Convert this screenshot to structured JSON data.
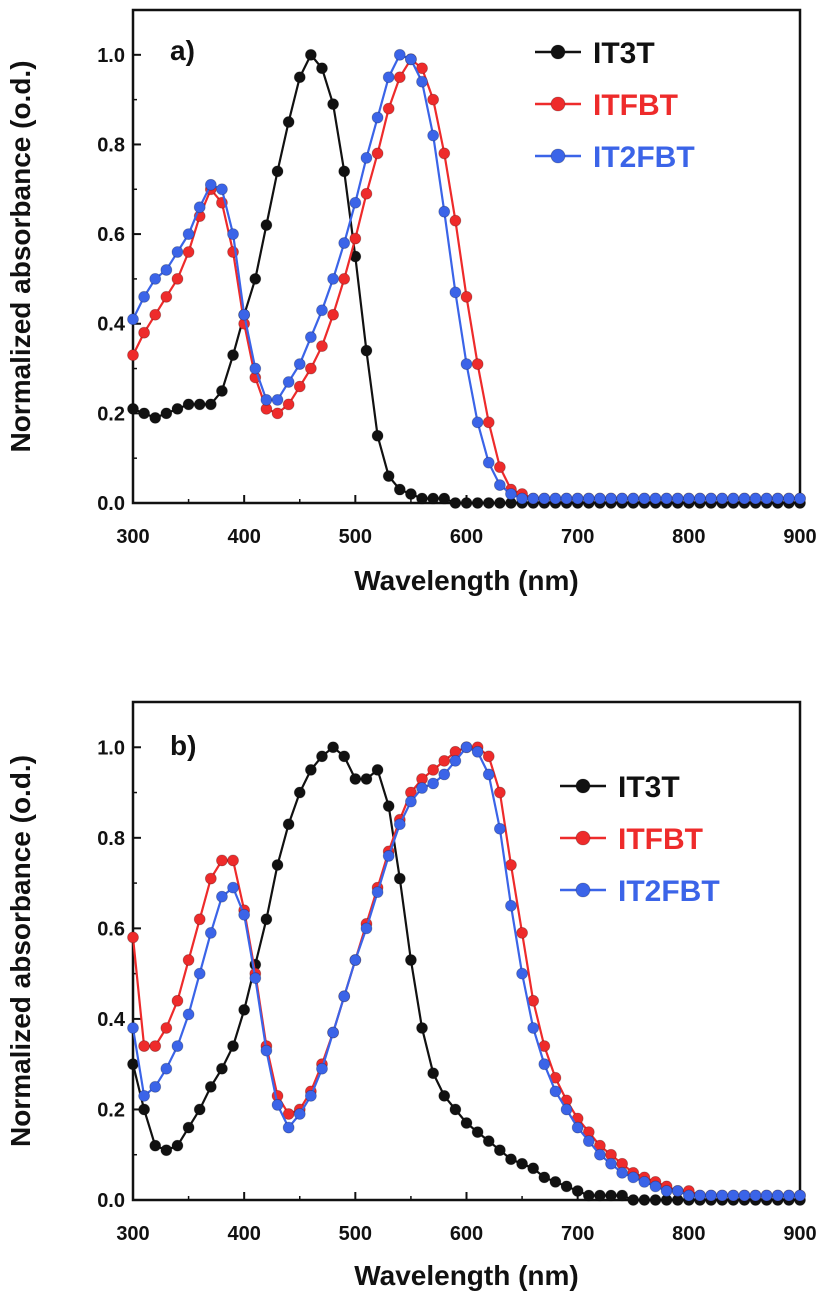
{
  "chart_data": [
    {
      "type": "line",
      "panel_label": "a)",
      "xlabel": "Wavelength (nm)",
      "ylabel": "Normalized absorbance (o.d.)",
      "xlim": [
        300,
        900
      ],
      "ylim": [
        0,
        1.1
      ],
      "xticks": [
        300,
        400,
        500,
        600,
        700,
        800,
        900
      ],
      "yticks": [
        0.0,
        0.2,
        0.4,
        0.6,
        0.8,
        1.0
      ],
      "ytick_labels": [
        "0.0",
        "0.2",
        "0.4",
        "0.6",
        "0.8",
        "1.0"
      ],
      "legend_position": "top-right",
      "series": [
        {
          "name": "IT3T",
          "color": "#111111",
          "x": [
            300,
            310,
            320,
            330,
            340,
            350,
            360,
            370,
            380,
            390,
            400,
            410,
            420,
            430,
            440,
            450,
            460,
            470,
            480,
            490,
            500,
            510,
            520,
            530,
            540,
            550,
            560,
            570,
            580,
            590,
            600,
            610,
            620,
            630,
            640,
            650,
            660,
            670,
            680,
            690,
            700,
            710,
            720,
            730,
            740,
            750,
            760,
            770,
            780,
            790,
            800,
            810,
            820,
            830,
            840,
            850,
            860,
            870,
            880,
            890,
            900
          ],
          "y": [
            0.21,
            0.2,
            0.19,
            0.2,
            0.21,
            0.22,
            0.22,
            0.22,
            0.25,
            0.33,
            0.42,
            0.5,
            0.62,
            0.74,
            0.85,
            0.95,
            1.0,
            0.97,
            0.89,
            0.74,
            0.55,
            0.34,
            0.15,
            0.06,
            0.03,
            0.02,
            0.01,
            0.01,
            0.01,
            0.0,
            0.0,
            0.0,
            0.0,
            0.0,
            0.0,
            0.0,
            0.0,
            0.0,
            0.0,
            0.0,
            0.0,
            0.0,
            0.0,
            0.0,
            0.0,
            0.0,
            0.0,
            0.0,
            0.0,
            0.0,
            0.0,
            0.0,
            0.0,
            0.0,
            0.0,
            0.0,
            0.0,
            0.0,
            0.0,
            0.0,
            0.0
          ]
        },
        {
          "name": "ITFBT",
          "color": "#ee2b2b",
          "x": [
            300,
            310,
            320,
            330,
            340,
            350,
            360,
            370,
            380,
            390,
            400,
            410,
            420,
            430,
            440,
            450,
            460,
            470,
            480,
            490,
            500,
            510,
            520,
            530,
            540,
            550,
            560,
            570,
            580,
            590,
            600,
            610,
            620,
            630,
            640,
            650,
            660,
            670,
            680,
            690,
            700,
            710,
            720,
            730,
            740,
            750,
            760,
            770,
            780,
            790,
            800,
            810,
            820,
            830,
            840,
            850,
            860,
            870,
            880,
            890,
            900
          ],
          "y": [
            0.33,
            0.38,
            0.42,
            0.46,
            0.5,
            0.56,
            0.64,
            0.7,
            0.67,
            0.56,
            0.4,
            0.28,
            0.21,
            0.2,
            0.22,
            0.26,
            0.3,
            0.35,
            0.42,
            0.5,
            0.59,
            0.69,
            0.78,
            0.88,
            0.95,
            0.99,
            0.97,
            0.9,
            0.78,
            0.63,
            0.46,
            0.31,
            0.18,
            0.08,
            0.03,
            0.02,
            0.01,
            0.01,
            0.01,
            0.01,
            0.01,
            0.01,
            0.01,
            0.01,
            0.01,
            0.01,
            0.01,
            0.01,
            0.01,
            0.01,
            0.01,
            0.01,
            0.01,
            0.01,
            0.01,
            0.01,
            0.01,
            0.01,
            0.01,
            0.01,
            0.01
          ]
        },
        {
          "name": "IT2FBT",
          "color": "#3b64e8",
          "x": [
            300,
            310,
            320,
            330,
            340,
            350,
            360,
            370,
            380,
            390,
            400,
            410,
            420,
            430,
            440,
            450,
            460,
            470,
            480,
            490,
            500,
            510,
            520,
            530,
            540,
            550,
            560,
            570,
            580,
            590,
            600,
            610,
            620,
            630,
            640,
            650,
            660,
            670,
            680,
            690,
            700,
            710,
            720,
            730,
            740,
            750,
            760,
            770,
            780,
            790,
            800,
            810,
            820,
            830,
            840,
            850,
            860,
            870,
            880,
            890,
            900
          ],
          "y": [
            0.41,
            0.46,
            0.5,
            0.52,
            0.56,
            0.6,
            0.66,
            0.71,
            0.7,
            0.6,
            0.42,
            0.3,
            0.23,
            0.23,
            0.27,
            0.31,
            0.37,
            0.43,
            0.5,
            0.58,
            0.67,
            0.77,
            0.86,
            0.95,
            1.0,
            0.99,
            0.94,
            0.82,
            0.65,
            0.47,
            0.31,
            0.18,
            0.09,
            0.04,
            0.02,
            0.01,
            0.01,
            0.01,
            0.01,
            0.01,
            0.01,
            0.01,
            0.01,
            0.01,
            0.01,
            0.01,
            0.01,
            0.01,
            0.01,
            0.01,
            0.01,
            0.01,
            0.01,
            0.01,
            0.01,
            0.01,
            0.01,
            0.01,
            0.01,
            0.01,
            0.01
          ]
        }
      ]
    },
    {
      "type": "line",
      "panel_label": "b)",
      "xlabel": "Wavelength (nm)",
      "ylabel": "Normalized absorbance (o.d.)",
      "xlim": [
        300,
        900
      ],
      "ylim": [
        0,
        1.1
      ],
      "xticks": [
        300,
        400,
        500,
        600,
        700,
        800,
        900
      ],
      "yticks": [
        0.0,
        0.2,
        0.4,
        0.6,
        0.8,
        1.0
      ],
      "ytick_labels": [
        "0.0",
        "0.2",
        "0.4",
        "0.6",
        "0.8",
        "1.0"
      ],
      "legend_position": "right",
      "series": [
        {
          "name": "IT3T",
          "color": "#111111",
          "x": [
            300,
            310,
            320,
            330,
            340,
            350,
            360,
            370,
            380,
            390,
            400,
            410,
            420,
            430,
            440,
            450,
            460,
            470,
            480,
            490,
            500,
            510,
            520,
            530,
            540,
            550,
            560,
            570,
            580,
            590,
            600,
            610,
            620,
            630,
            640,
            650,
            660,
            670,
            680,
            690,
            700,
            710,
            720,
            730,
            740,
            750,
            760,
            770,
            780,
            790,
            800,
            810,
            820,
            830,
            840,
            850,
            860,
            870,
            880,
            890,
            900
          ],
          "y": [
            0.3,
            0.2,
            0.12,
            0.11,
            0.12,
            0.16,
            0.2,
            0.25,
            0.29,
            0.34,
            0.42,
            0.52,
            0.62,
            0.74,
            0.83,
            0.9,
            0.95,
            0.98,
            1.0,
            0.98,
            0.93,
            0.93,
            0.95,
            0.87,
            0.71,
            0.53,
            0.38,
            0.28,
            0.23,
            0.2,
            0.17,
            0.15,
            0.13,
            0.11,
            0.09,
            0.08,
            0.07,
            0.05,
            0.04,
            0.03,
            0.02,
            0.01,
            0.01,
            0.01,
            0.01,
            0.0,
            0.0,
            0.0,
            0.0,
            0.0,
            0.0,
            0.0,
            0.0,
            0.0,
            0.0,
            0.0,
            0.0,
            0.0,
            0.0,
            0.0,
            0.0
          ]
        },
        {
          "name": "ITFBT",
          "color": "#ee2b2b",
          "x": [
            300,
            310,
            320,
            330,
            340,
            350,
            360,
            370,
            380,
            390,
            400,
            410,
            420,
            430,
            440,
            450,
            460,
            470,
            480,
            490,
            500,
            510,
            520,
            530,
            540,
            550,
            560,
            570,
            580,
            590,
            600,
            610,
            620,
            630,
            640,
            650,
            660,
            670,
            680,
            690,
            700,
            710,
            720,
            730,
            740,
            750,
            760,
            770,
            780,
            790,
            800,
            810,
            820,
            830,
            840,
            850,
            860,
            870,
            880,
            890,
            900
          ],
          "y": [
            0.58,
            0.34,
            0.34,
            0.38,
            0.44,
            0.53,
            0.62,
            0.71,
            0.75,
            0.75,
            0.64,
            0.5,
            0.34,
            0.23,
            0.19,
            0.2,
            0.24,
            0.3,
            0.37,
            0.45,
            0.53,
            0.61,
            0.69,
            0.77,
            0.84,
            0.9,
            0.93,
            0.95,
            0.97,
            0.99,
            1.0,
            1.0,
            0.98,
            0.9,
            0.74,
            0.59,
            0.44,
            0.34,
            0.27,
            0.22,
            0.18,
            0.15,
            0.12,
            0.1,
            0.08,
            0.06,
            0.05,
            0.04,
            0.03,
            0.02,
            0.02,
            0.01,
            0.01,
            0.01,
            0.01,
            0.01,
            0.01,
            0.01,
            0.01,
            0.01,
            0.01
          ]
        },
        {
          "name": "IT2FBT",
          "color": "#3b64e8",
          "x": [
            300,
            310,
            320,
            330,
            340,
            350,
            360,
            370,
            380,
            390,
            400,
            410,
            420,
            430,
            440,
            450,
            460,
            470,
            480,
            490,
            500,
            510,
            520,
            530,
            540,
            550,
            560,
            570,
            580,
            590,
            600,
            610,
            620,
            630,
            640,
            650,
            660,
            670,
            680,
            690,
            700,
            710,
            720,
            730,
            740,
            750,
            760,
            770,
            780,
            790,
            800,
            810,
            820,
            830,
            840,
            850,
            860,
            870,
            880,
            890,
            900
          ],
          "y": [
            0.38,
            0.23,
            0.25,
            0.29,
            0.34,
            0.41,
            0.5,
            0.59,
            0.67,
            0.69,
            0.63,
            0.49,
            0.33,
            0.21,
            0.16,
            0.19,
            0.23,
            0.29,
            0.37,
            0.45,
            0.53,
            0.6,
            0.68,
            0.76,
            0.83,
            0.88,
            0.91,
            0.92,
            0.94,
            0.97,
            1.0,
            0.99,
            0.94,
            0.82,
            0.65,
            0.5,
            0.38,
            0.3,
            0.24,
            0.2,
            0.16,
            0.13,
            0.1,
            0.08,
            0.06,
            0.05,
            0.04,
            0.03,
            0.02,
            0.02,
            0.01,
            0.01,
            0.01,
            0.01,
            0.01,
            0.01,
            0.01,
            0.01,
            0.01,
            0.01,
            0.01
          ]
        }
      ]
    }
  ]
}
